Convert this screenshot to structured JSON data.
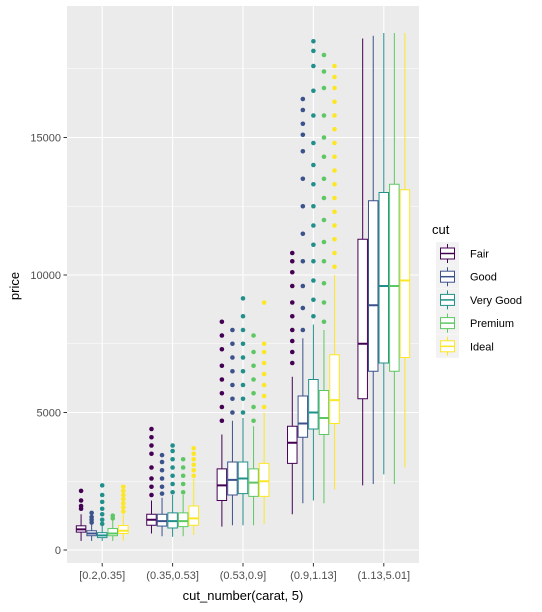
{
  "chart_data": {
    "type": "boxplot",
    "xlabel": "cut_number(carat, 5)",
    "ylabel": "price",
    "ylim": [
      -950,
      19000
    ],
    "y_ticks": [
      0,
      5000,
      10000,
      15000
    ],
    "categories": [
      "[0.2,0.35]",
      "(0.35,0.53]",
      "(0.53,0.9]",
      "(0.9,1.13]",
      "(1.13,5.01]"
    ],
    "grid": "major and minor",
    "legend": {
      "title": "cut",
      "position": "right"
    },
    "series": [
      {
        "name": "Fair",
        "color": "#440154",
        "boxes": [
          {
            "min": 330,
            "q1": 650,
            "median": 750,
            "q3": 880,
            "max": 1300,
            "outliers": [
              1500,
              1600,
              1800,
              2150
            ]
          },
          {
            "min": 600,
            "q1": 900,
            "median": 1100,
            "q3": 1300,
            "max": 1800,
            "outliers": [
              2000,
              2300,
              2600,
              3000,
              3500,
              3800,
              4100,
              4400
            ]
          },
          {
            "min": 850,
            "q1": 1800,
            "median": 2350,
            "q3": 2950,
            "max": 4200,
            "outliers": [
              4700,
              5200,
              5700,
              6200,
              6700,
              7300,
              7800,
              8300
            ]
          },
          {
            "min": 1300,
            "q1": 3150,
            "median": 3900,
            "q3": 4500,
            "max": 6300,
            "outliers": [
              6800,
              7200,
              7600,
              8000,
              8500,
              9000,
              9600,
              10100,
              10500,
              10800
            ]
          },
          {
            "min": 2350,
            "q1": 5500,
            "median": 7500,
            "q3": 11300,
            "max": 18600,
            "outliers": []
          }
        ]
      },
      {
        "name": "Good",
        "color": "#3B528B",
        "boxes": [
          {
            "min": 330,
            "q1": 520,
            "median": 600,
            "q3": 700,
            "max": 950,
            "outliers": [
              1000,
              1100,
              1200,
              1350
            ]
          },
          {
            "min": 500,
            "q1": 870,
            "median": 1050,
            "q3": 1300,
            "max": 1900,
            "outliers": [
              2050,
              2300,
              2600,
              2900,
              3200,
              3450
            ]
          },
          {
            "min": 900,
            "q1": 2000,
            "median": 2550,
            "q3": 3200,
            "max": 4700,
            "outliers": [
              5000,
              5500,
              6000,
              6500,
              7000,
              7500,
              8000
            ]
          },
          {
            "min": 1700,
            "q1": 4100,
            "median": 4600,
            "q3": 5600,
            "max": 7700,
            "outliers": [
              8000,
              8800,
              9600,
              10500,
              11500,
              12500,
              13500,
              14500,
              15100,
              15500,
              16000,
              16400
            ]
          },
          {
            "min": 2400,
            "q1": 6500,
            "median": 8900,
            "q3": 12700,
            "max": 18700,
            "outliers": []
          }
        ]
      },
      {
        "name": "Very Good",
        "color": "#21908C",
        "boxes": [
          {
            "min": 330,
            "q1": 450,
            "median": 530,
            "q3": 630,
            "max": 900,
            "outliers": [
              950,
              1100,
              1300,
              1500,
              1750,
              2000,
              2350
            ]
          },
          {
            "min": 480,
            "q1": 800,
            "median": 1050,
            "q3": 1350,
            "max": 2000,
            "outliers": [
              2100,
              2400,
              2700,
              3000,
              3300,
              3600,
              3800
            ]
          },
          {
            "min": 900,
            "q1": 2050,
            "median": 2600,
            "q3": 3200,
            "max": 4800,
            "outliers": [
              5000,
              5500,
              6000,
              6500,
              7000,
              7500,
              8000,
              8500,
              9150
            ]
          },
          {
            "min": 1800,
            "q1": 4400,
            "median": 5000,
            "q3": 6200,
            "max": 8200,
            "outliers": [
              8500,
              9100,
              9800,
              10500,
              11100,
              11800,
              12500,
              13300,
              14000,
              14800,
              15800,
              16700,
              17600,
              18150,
              18500
            ]
          },
          {
            "min": 2750,
            "q1": 6800,
            "median": 9600,
            "q3": 13000,
            "max": 18800,
            "outliers": []
          }
        ]
      },
      {
        "name": "Premium",
        "color": "#5DC863",
        "boxes": [
          {
            "min": 330,
            "q1": 520,
            "median": 600,
            "q3": 780,
            "max": 1100,
            "outliers": [
              1150,
              1250
            ]
          },
          {
            "min": 500,
            "q1": 850,
            "median": 1050,
            "q3": 1350,
            "max": 2000,
            "outliers": [
              2100,
              2400,
              2700,
              3000,
              3300
            ]
          },
          {
            "min": 900,
            "q1": 1950,
            "median": 2450,
            "q3": 2950,
            "max": 4500,
            "outliers": [
              4700,
              5200,
              5700,
              6200,
              6700,
              7200,
              7800
            ]
          },
          {
            "min": 1700,
            "q1": 4200,
            "median": 4800,
            "q3": 5800,
            "max": 8000,
            "outliers": [
              8300,
              9000,
              9700,
              10500,
              11200,
              12000,
              12800,
              13500,
              14300,
              15000,
              15800,
              16800,
              17400,
              18000
            ]
          },
          {
            "min": 2400,
            "q1": 6500,
            "median": 9600,
            "q3": 13300,
            "max": 18800,
            "outliers": []
          }
        ]
      },
      {
        "name": "Ideal",
        "color": "#FDE725",
        "boxes": [
          {
            "min": 340,
            "q1": 600,
            "median": 700,
            "q3": 890,
            "max": 1300,
            "outliers": [
              1400,
              1550,
              1700,
              1850,
              2000,
              2150,
              2300
            ]
          },
          {
            "min": 550,
            "q1": 900,
            "median": 1150,
            "q3": 1600,
            "max": 2600,
            "outliers": [
              2700,
              2900,
              3100,
              3300,
              3500,
              3700
            ]
          },
          {
            "min": 950,
            "q1": 1950,
            "median": 2500,
            "q3": 3150,
            "max": 5000,
            "outliers": [
              5200,
              5600,
              6000,
              6400,
              6800,
              7200,
              7500,
              9000
            ]
          },
          {
            "min": 2200,
            "q1": 4600,
            "median": 5450,
            "q3": 7100,
            "max": 10000,
            "outliers": [
              10300,
              10800,
              11300,
              11800,
              12300,
              12800,
              13300,
              13800,
              14300,
              14800,
              15300,
              15800,
              16300,
              16800,
              17200,
              17600
            ]
          },
          {
            "min": 3000,
            "q1": 7000,
            "median": 9800,
            "q3": 13100,
            "max": 18800,
            "outliers": []
          }
        ]
      }
    ]
  }
}
